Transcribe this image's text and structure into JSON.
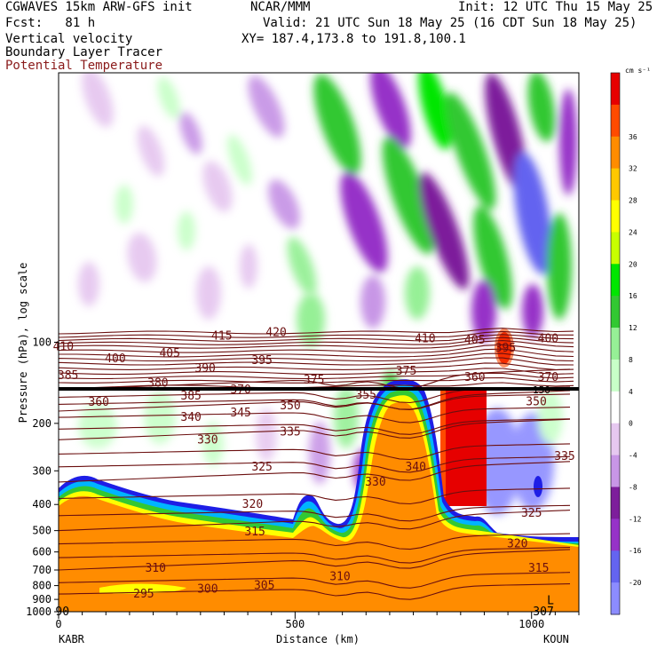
{
  "header": {
    "model": "CGWAVES 15km ARW-GFS init",
    "org": "NCAR/MMM",
    "init": "Init: 12 UTC Thu 15 May 25",
    "fcst": "Fcst:   81 h",
    "valid": "Valid: 21 UTC Sun 18 May 25 (16 CDT Sun 18 May 25)",
    "field1": "Vertical velocity",
    "field2": "Boundary Layer Tracer",
    "field3": "Potential Temperature",
    "xy": "XY= 187.4,173.8 to 191.8,100.1"
  },
  "colors": {
    "theta": "#6b0f0f",
    "tracer_orange": "#ff8c00",
    "pbl_line": "#000000"
  },
  "chart_data": {
    "type": "heatmap",
    "title": "",
    "xlabel": "Distance (km)",
    "ylabel": "Pressure (hPa), log scale",
    "xlim": [
      0,
      1100
    ],
    "ylim": [
      1000,
      10
    ],
    "y_scale": "log",
    "x_ticks": [
      0,
      500,
      1000
    ],
    "x_tick_labels": [
      "0",
      "500",
      "1000"
    ],
    "y_ticks": [
      100,
      200,
      300,
      400,
      500,
      600,
      700,
      800,
      900,
      1000
    ],
    "y_tick_labels": [
      "100",
      "200",
      "300",
      "400",
      "500",
      "600",
      "700",
      "800",
      "900",
      "1000"
    ],
    "endpoint_left": "KABR",
    "endpoint_right": "KOUN",
    "colorbar": {
      "units": "cm s⁻¹",
      "levels": [
        -20,
        -16,
        -12,
        -8,
        -4,
        0,
        4,
        8,
        12,
        16,
        20,
        24,
        28,
        32,
        36
      ],
      "colors": [
        "#8c8cff",
        "#6464f0",
        "#9632c8",
        "#7d1e9b",
        "#c896e6",
        "#e6c8f0",
        "#ffffff",
        "#c8ffc8",
        "#96f096",
        "#32c832",
        "#00e600",
        "#c8ff00",
        "#ffff00",
        "#ffc800",
        "#ff8c00",
        "#ff4b00",
        "#e60000"
      ]
    },
    "theta_labels": [
      {
        "value": "410",
        "x": 10,
        "p": 104
      },
      {
        "value": "415",
        "x": 345,
        "p": 95
      },
      {
        "value": "420",
        "x": 460,
        "p": 92
      },
      {
        "value": "400",
        "x": 120,
        "p": 115
      },
      {
        "value": "405",
        "x": 235,
        "p": 110
      },
      {
        "value": "385",
        "x": 20,
        "p": 133
      },
      {
        "value": "390",
        "x": 310,
        "p": 125
      },
      {
        "value": "395",
        "x": 430,
        "p": 117
      },
      {
        "value": "410",
        "x": 775,
        "p": 97
      },
      {
        "value": "405",
        "x": 880,
        "p": 98
      },
      {
        "value": "395",
        "x": 945,
        "p": 105
      },
      {
        "value": "400",
        "x": 1035,
        "p": 97
      },
      {
        "value": "380",
        "x": 210,
        "p": 142
      },
      {
        "value": "375",
        "x": 540,
        "p": 138
      },
      {
        "value": "375",
        "x": 735,
        "p": 128
      },
      {
        "value": "360",
        "x": 880,
        "p": 135
      },
      {
        "value": "370",
        "x": 1035,
        "p": 135
      },
      {
        "value": "385",
        "x": 280,
        "p": 158
      },
      {
        "value": "370",
        "x": 385,
        "p": 150
      },
      {
        "value": "355",
        "x": 650,
        "p": 157
      },
      {
        "value": "360",
        "x": 85,
        "p": 167
      },
      {
        "value": "350",
        "x": 1010,
        "p": 166
      },
      {
        "value": "350",
        "x": 490,
        "p": 172
      },
      {
        "value": "345",
        "x": 385,
        "p": 183
      },
      {
        "value": "340",
        "x": 280,
        "p": 190
      },
      {
        "value": "335",
        "x": 490,
        "p": 215
      },
      {
        "value": "330",
        "x": 315,
        "p": 230
      },
      {
        "value": "325",
        "x": 430,
        "p": 290
      },
      {
        "value": "340",
        "x": 755,
        "p": 290
      },
      {
        "value": "335",
        "x": 1070,
        "p": 265
      },
      {
        "value": "330",
        "x": 670,
        "p": 330
      },
      {
        "value": "320",
        "x": 410,
        "p": 400
      },
      {
        "value": "325",
        "x": 1000,
        "p": 430
      },
      {
        "value": "315",
        "x": 415,
        "p": 505
      },
      {
        "value": "320",
        "x": 970,
        "p": 560
      },
      {
        "value": "310",
        "x": 205,
        "p": 690
      },
      {
        "value": "310",
        "x": 595,
        "p": 740
      },
      {
        "value": "315",
        "x": 1015,
        "p": 690
      },
      {
        "value": "300",
        "x": 315,
        "p": 825
      },
      {
        "value": "305",
        "x": 435,
        "p": 800
      },
      {
        "value": "295",
        "x": 180,
        "p": 860
      },
      {
        "value": "L",
        "x": 1040,
        "p": 910
      },
      {
        "value": "307",
        "x": 1025,
        "p": 1000
      },
      {
        "value": "90",
        "x": 8,
        "p": 1000
      }
    ],
    "pbl_label": "150"
  }
}
